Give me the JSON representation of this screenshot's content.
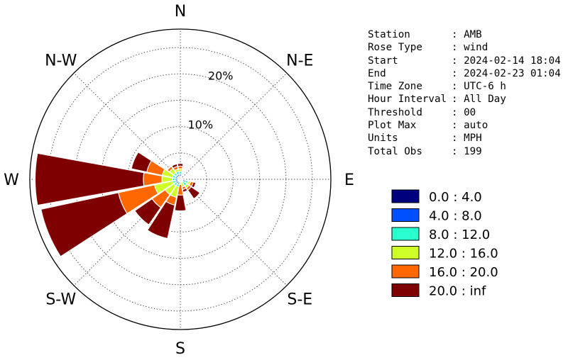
{
  "info": [
    {
      "label": "Station",
      "value": "AMB"
    },
    {
      "label": "Rose Type",
      "value": "wind"
    },
    {
      "label": "Start",
      "value": "2024-02-14 18:04"
    },
    {
      "label": "End",
      "value": "2024-02-23 01:04"
    },
    {
      "label": "Time Zone",
      "value": "UTC-6 h"
    },
    {
      "label": "Hour Interval",
      "value": "All Day"
    },
    {
      "label": "Threshold",
      "value": "00"
    },
    {
      "label": "Plot Max",
      "value": "auto"
    },
    {
      "label": "Units",
      "value": "MPH"
    },
    {
      "label": "Total Obs",
      "value": "199"
    }
  ],
  "chart_data": {
    "type": "wind_rose",
    "directions": [
      "N",
      "NNE",
      "NE",
      "ENE",
      "E",
      "ESE",
      "SE",
      "SSE",
      "S",
      "SSW",
      "SW",
      "WSW",
      "W",
      "WNW",
      "NW",
      "NNW"
    ],
    "direction_labels": [
      {
        "text": "N",
        "angle": 0
      },
      {
        "text": "N-E",
        "angle": 45
      },
      {
        "text": "E",
        "angle": 90
      },
      {
        "text": "S-E",
        "angle": 135
      },
      {
        "text": "S",
        "angle": 180
      },
      {
        "text": "S-W",
        "angle": 225
      },
      {
        "text": "W",
        "angle": 270
      },
      {
        "text": "N-W",
        "angle": 315
      }
    ],
    "ring_labels": [
      "10%",
      "20%"
    ],
    "ring_values": [
      5,
      10,
      15,
      20,
      25
    ],
    "rmax": 28.5,
    "units": "%",
    "grid": true,
    "legend_position": "right",
    "bins": [
      {
        "name": "0.0 : 4.0",
        "color": "#00007f"
      },
      {
        "name": "4.0 : 8.0",
        "color": "#0050ff"
      },
      {
        "name": "8.0 : 12.0",
        "color": "#29ffce"
      },
      {
        "name": "12.0 : 16.0",
        "color": "#ceff29"
      },
      {
        "name": "16.0 : 20.0",
        "color": "#ff6800"
      },
      {
        "name": "20.0 : inf",
        "color": "#7f0000"
      }
    ],
    "cumulative_percent": {
      "N": [
        0.5,
        1.0,
        1.5,
        2.0,
        2.5,
        3.0
      ],
      "NNE": [
        0.5,
        0.5,
        0.5,
        0.5,
        0.5,
        0.5
      ],
      "NE": [
        0.5,
        0.5,
        0.5,
        0.5,
        0.5,
        0.5
      ],
      "ENE": [
        0.5,
        0.5,
        0.5,
        0.5,
        0.5,
        0.5
      ],
      "E": [
        0.5,
        0.5,
        0.5,
        0.5,
        0.5,
        0.5
      ],
      "ESE": [
        0.5,
        1.0,
        1.5,
        2.0,
        2.5,
        3.0
      ],
      "SE": [
        0.5,
        0.5,
        1.5,
        2.0,
        2.5,
        4.5
      ],
      "SSE": [
        0.5,
        0.5,
        0.5,
        1.5,
        2.0,
        2.5
      ],
      "S": [
        0.5,
        0.5,
        0.5,
        1.0,
        3.0,
        6.0
      ],
      "SSW": [
        0.5,
        1.0,
        1.5,
        3.5,
        5.0,
        11.5
      ],
      "SW": [
        0.5,
        1.0,
        1.5,
        3.5,
        6.5,
        10.5
      ],
      "WSW": [
        0.5,
        1.0,
        1.5,
        5.0,
        12.0,
        27.0
      ],
      "W": [
        0.5,
        1.0,
        1.5,
        3.5,
        7.0,
        27.5
      ],
      "WNW": [
        0.5,
        1.0,
        1.5,
        3.5,
        6.5,
        9.5
      ],
      "NW": [
        0.5,
        1.0,
        1.5,
        2.5,
        3.0,
        3.0
      ],
      "NNW": [
        0.5,
        1.0,
        1.5,
        2.0,
        2.5,
        3.0
      ]
    }
  }
}
